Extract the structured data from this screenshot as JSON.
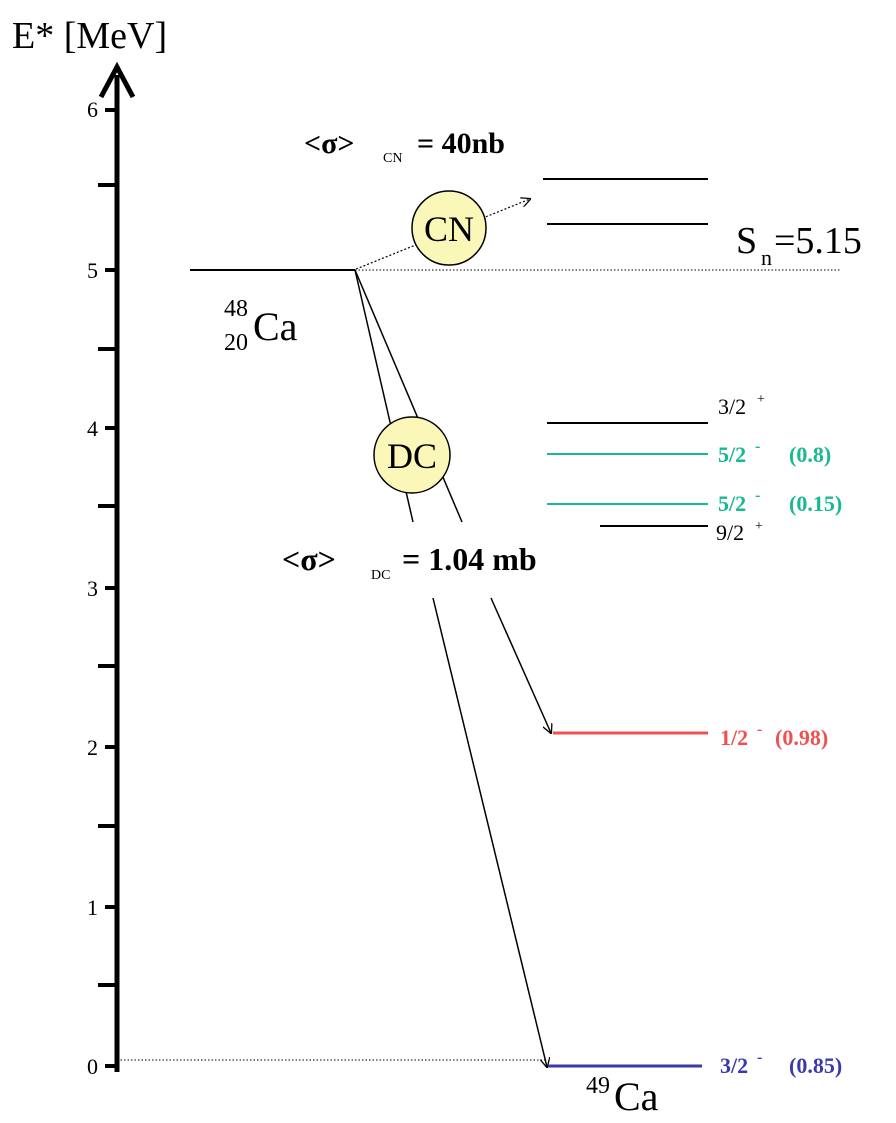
{
  "axis": {
    "label": "E* [MeV]",
    "ticks": [
      "6",
      "5",
      "4",
      "3",
      "2",
      "1",
      "0"
    ]
  },
  "target": {
    "mass": "48",
    "charge": "20",
    "symbol": "Ca"
  },
  "residual": {
    "mass": "49",
    "symbol": "Ca"
  },
  "cn": {
    "bubble": "CN",
    "xs_prefix": "<σ>",
    "xs_sub": "CN",
    "xs_value": "= 40nb"
  },
  "dc": {
    "bubble": "DC",
    "xs_prefix": "<σ>",
    "xs_sub": "DC",
    "xs_value": "= 1.04 mb"
  },
  "sn": {
    "symbol": "S",
    "sub": "n",
    "value": "=5.15"
  },
  "levels": [
    {
      "spin": "3/2",
      "parity": "+",
      "sf": "",
      "color": "#000000"
    },
    {
      "spin": "5/2",
      "parity": "-",
      "sf": "(0.8)",
      "color": "#17b894"
    },
    {
      "spin": "5/2",
      "parity": "-",
      "sf": "(0.15)",
      "color": "#17b894"
    },
    {
      "spin": "9/2",
      "parity": "+",
      "sf": "",
      "color": "#000000"
    },
    {
      "spin": "1/2",
      "parity": "-",
      "sf": "(0.98)",
      "color": "#f0504f"
    },
    {
      "spin": "3/2",
      "parity": "-",
      "sf": "(0.85)",
      "color": "#3a3aaa"
    }
  ],
  "colors": {
    "bubble_fill": "#fbf7b9",
    "green": "#17b894",
    "red": "#f0504f",
    "blue": "#3a3aaa"
  }
}
